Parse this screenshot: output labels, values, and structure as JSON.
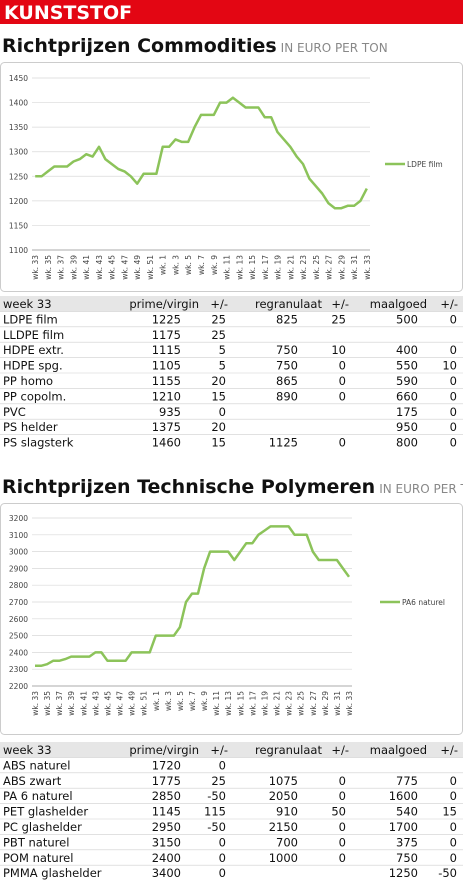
{
  "header": {
    "title": "KUNSTSTOF"
  },
  "sections": [
    {
      "title": "Richtprijzen Commodities",
      "subtitle": "IN EURO PER TON",
      "table": {
        "columns": [
          "week 33",
          "prime/virgin",
          "+/-",
          "regranulaat",
          "+/-",
          "maalgoed",
          "+/-"
        ],
        "rows": [
          [
            "LDPE film",
            "1225",
            "25",
            "825",
            "25",
            "500",
            "0"
          ],
          [
            "LLDPE film",
            "1175",
            "25",
            null,
            null,
            null,
            null
          ],
          [
            "HDPE extr.",
            "1115",
            "5",
            "750",
            "10",
            "400",
            "0"
          ],
          [
            "HDPE spg.",
            "1105",
            "5",
            "750",
            "0",
            "550",
            "10"
          ],
          [
            "PP homo",
            "1155",
            "20",
            "865",
            "0",
            "590",
            "0"
          ],
          [
            "PP copolm.",
            "1210",
            "15",
            "890",
            "0",
            "660",
            "0"
          ],
          [
            "PVC",
            "935",
            "0",
            null,
            null,
            "175",
            "0"
          ],
          [
            "PS helder",
            "1375",
            "20",
            null,
            null,
            "950",
            "0"
          ],
          [
            "PS slagsterk",
            "1460",
            "15",
            "1125",
            "0",
            "800",
            "0"
          ]
        ]
      }
    },
    {
      "title": "Richtprijzen Technische Polymeren",
      "subtitle": "IN EURO PER TON",
      "table": {
        "columns": [
          "week 33",
          "prime/virgin",
          "+/-",
          "regranulaat",
          "+/-",
          "maalgoed",
          "+/-"
        ],
        "rows": [
          [
            "ABS naturel",
            "1720",
            "0",
            null,
            null,
            null,
            null
          ],
          [
            "ABS zwart",
            "1775",
            "25",
            "1075",
            "0",
            "775",
            "0"
          ],
          [
            "PA 6 naturel",
            "2850",
            "-50",
            "2050",
            "0",
            "1600",
            "0"
          ],
          [
            "PET glashelder",
            "1145",
            "115",
            "910",
            "50",
            "540",
            "15"
          ],
          [
            "PC glashelder",
            "2950",
            "-50",
            "2150",
            "0",
            "1700",
            "0"
          ],
          [
            "PBT naturel",
            "3150",
            "0",
            "700",
            "0",
            "375",
            "0"
          ],
          [
            "POM naturel",
            "2400",
            "0",
            "1000",
            "0",
            "750",
            "0"
          ],
          [
            "PMMA glashelder",
            "3400",
            "0",
            null,
            null,
            "1250",
            "-50"
          ]
        ]
      }
    }
  ],
  "chart_data": [
    {
      "type": "line",
      "categories": [
        "wk. 33",
        null,
        "wk. 35",
        null,
        "wk. 37",
        null,
        "wk. 39",
        null,
        "wk. 41",
        null,
        "wk. 43",
        null,
        "wk. 45",
        null,
        "wk. 47",
        null,
        "wk. 49",
        null,
        "wk. 51",
        null,
        "wk. 1",
        null,
        "wk. 3",
        null,
        "wk. 5",
        null,
        "wk. 7",
        null,
        "wk. 9",
        null,
        "wk. 11",
        null,
        "wk. 13",
        null,
        "wk. 15",
        null,
        "wk. 17",
        null,
        "wk. 19",
        null,
        "wk. 21",
        null,
        "wk. 23",
        null,
        "wk. 25",
        null,
        "wk. 27",
        null,
        "wk. 29",
        null,
        "wk. 31",
        null,
        "wk. 33"
      ],
      "series": [
        {
          "name": "LDPE film",
          "color": "#8cc35a",
          "values": [
            1250,
            1250,
            1260,
            1270,
            1270,
            1270,
            1280,
            1285,
            1295,
            1290,
            1310,
            1285,
            1275,
            1265,
            1260,
            1250,
            1235,
            1255,
            1255,
            1255,
            1310,
            1310,
            1325,
            1320,
            1320,
            1350,
            1375,
            1375,
            1375,
            1400,
            1400,
            1410,
            1400,
            1390,
            1390,
            1390,
            1370,
            1370,
            1340,
            1325,
            1310,
            1290,
            1275,
            1245,
            1230,
            1215,
            1195,
            1185,
            1185,
            1190,
            1190,
            1200,
            1225
          ]
        }
      ],
      "ylim": [
        1100,
        1450
      ],
      "yticks": [
        1100,
        1150,
        1200,
        1250,
        1300,
        1350,
        1400,
        1450
      ],
      "grid": true,
      "legend": "right"
    },
    {
      "type": "line",
      "categories": [
        "wk. 33",
        null,
        "wk. 35",
        null,
        "wk. 37",
        null,
        "wk. 39",
        null,
        "wk. 41",
        null,
        "wk. 43",
        null,
        "wk. 45",
        null,
        "wk. 47",
        null,
        "wk. 49",
        null,
        "wk. 51",
        null,
        "wk. 1",
        null,
        "wk. 3",
        null,
        "wk. 5",
        null,
        "wk. 7",
        null,
        "wk. 9",
        null,
        "wk. 11",
        null,
        "wk. 13",
        null,
        "wk. 15",
        null,
        "wk. 17",
        null,
        "wk. 19",
        null,
        "wk. 21",
        null,
        "wk. 23",
        null,
        "wk. 25",
        null,
        "wk. 27",
        null,
        "wk. 29",
        null,
        "wk. 31",
        null,
        "wk. 33"
      ],
      "series": [
        {
          "name": "PA6 naturel",
          "color": "#8cc35a",
          "values": [
            2320,
            2320,
            2330,
            2350,
            2350,
            2360,
            2375,
            2375,
            2375,
            2375,
            2400,
            2400,
            2350,
            2350,
            2350,
            2350,
            2400,
            2400,
            2400,
            2400,
            2500,
            2500,
            2500,
            2500,
            2550,
            2700,
            2750,
            2750,
            2900,
            3000,
            3000,
            3000,
            3000,
            2950,
            3000,
            3050,
            3050,
            3100,
            3125,
            3150,
            3150,
            3150,
            3150,
            3100,
            3100,
            3100,
            3000,
            2950,
            2950,
            2950,
            2950,
            2900,
            2850
          ]
        }
      ],
      "ylim": [
        2200,
        3200
      ],
      "yticks": [
        2200,
        2300,
        2400,
        2500,
        2600,
        2700,
        2800,
        2900,
        3000,
        3100,
        3200
      ],
      "grid": true,
      "legend": "right"
    }
  ]
}
